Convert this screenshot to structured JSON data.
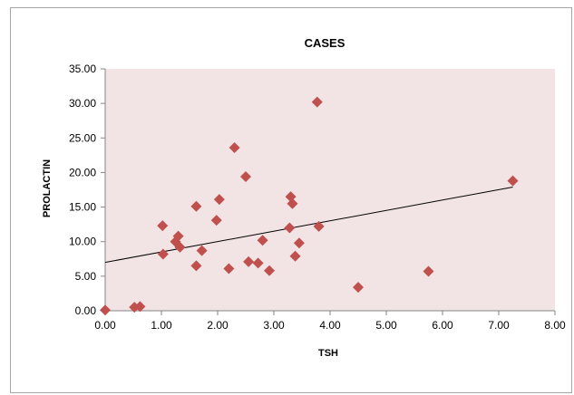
{
  "chart_data": {
    "type": "scatter",
    "title": "CASES",
    "xlabel": "TSH",
    "ylabel": "PROLACTIN",
    "xlim": [
      0,
      8
    ],
    "ylim": [
      0,
      35
    ],
    "x_ticks": [
      "0.00",
      "1.00",
      "2.00",
      "3.00",
      "4.00",
      "5.00",
      "6.00",
      "7.00",
      "8.00"
    ],
    "y_ticks": [
      "0.00",
      "5.00",
      "10.00",
      "15.00",
      "20.00",
      "25.00",
      "30.00",
      "35.00"
    ],
    "grid": false,
    "legend": "none",
    "plot_background": "#f2e4e4",
    "marker_color": "#c0504d",
    "marker": "diamond",
    "points": [
      {
        "x": 0.0,
        "y": 0.1
      },
      {
        "x": 0.52,
        "y": 0.5
      },
      {
        "x": 0.62,
        "y": 0.6
      },
      {
        "x": 1.02,
        "y": 12.3
      },
      {
        "x": 1.03,
        "y": 8.2
      },
      {
        "x": 1.25,
        "y": 10.0
      },
      {
        "x": 1.3,
        "y": 10.8
      },
      {
        "x": 1.33,
        "y": 9.2
      },
      {
        "x": 1.62,
        "y": 15.1
      },
      {
        "x": 1.62,
        "y": 6.5
      },
      {
        "x": 1.72,
        "y": 8.7
      },
      {
        "x": 1.98,
        "y": 13.1
      },
      {
        "x": 2.03,
        "y": 16.1
      },
      {
        "x": 2.2,
        "y": 6.1
      },
      {
        "x": 2.3,
        "y": 23.6
      },
      {
        "x": 2.5,
        "y": 19.4
      },
      {
        "x": 2.55,
        "y": 7.1
      },
      {
        "x": 2.72,
        "y": 6.9
      },
      {
        "x": 2.8,
        "y": 10.2
      },
      {
        "x": 2.92,
        "y": 5.8
      },
      {
        "x": 3.28,
        "y": 12.0
      },
      {
        "x": 3.3,
        "y": 16.5
      },
      {
        "x": 3.33,
        "y": 15.5
      },
      {
        "x": 3.38,
        "y": 7.9
      },
      {
        "x": 3.45,
        "y": 9.8
      },
      {
        "x": 3.77,
        "y": 30.2
      },
      {
        "x": 3.8,
        "y": 12.2
      },
      {
        "x": 4.5,
        "y": 3.4
      },
      {
        "x": 5.75,
        "y": 5.7
      },
      {
        "x": 7.25,
        "y": 18.8
      }
    ],
    "trendline": {
      "type": "linear",
      "x": [
        0.0,
        7.25
      ],
      "y": [
        7.0,
        17.9
      ],
      "color": "#000000"
    }
  }
}
